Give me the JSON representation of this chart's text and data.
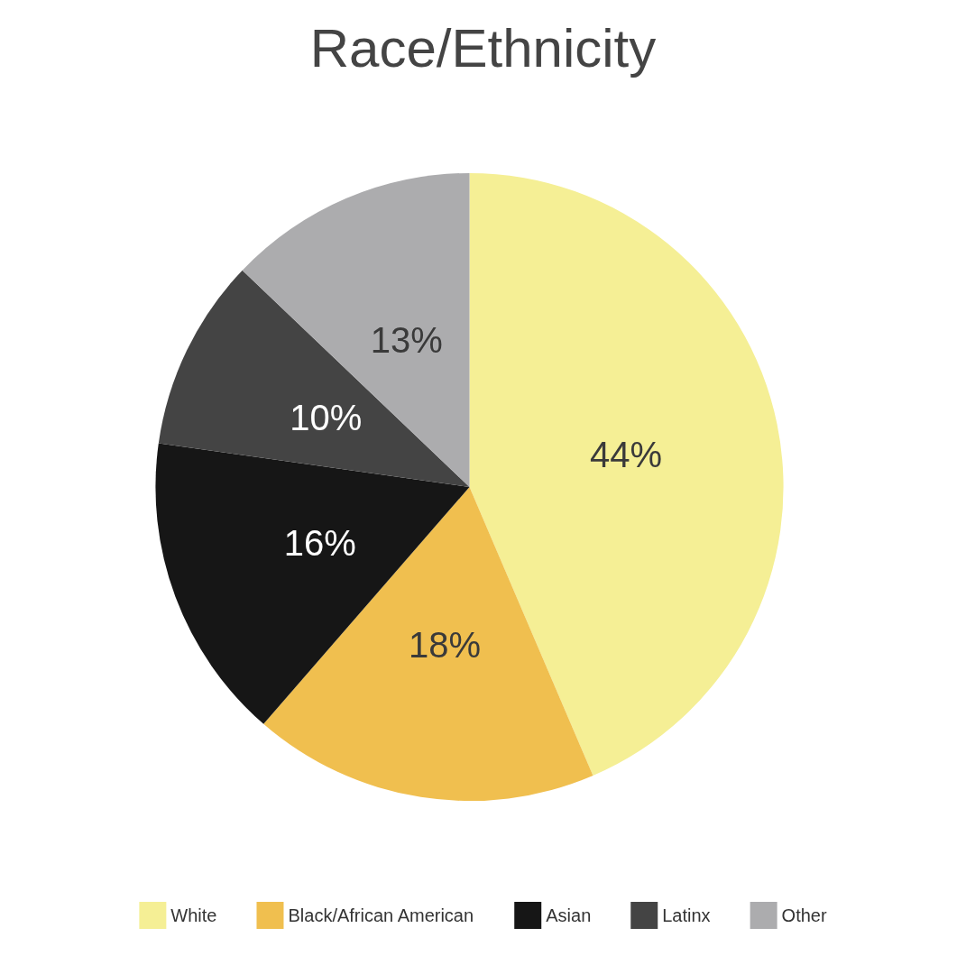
{
  "chart_data": {
    "type": "pie",
    "title": "Race/Ethnicity",
    "categories": [
      "White",
      "Black/African American",
      "Asian",
      "Latinx",
      "Other"
    ],
    "values": [
      44,
      18,
      16,
      10,
      13
    ],
    "value_labels": [
      "44%",
      "18%",
      "16%",
      "10%",
      "13%"
    ],
    "colors": [
      "#f5ef95",
      "#f0bf4f",
      "#161616",
      "#444444",
      "#acacae"
    ],
    "legend": "bottom"
  }
}
